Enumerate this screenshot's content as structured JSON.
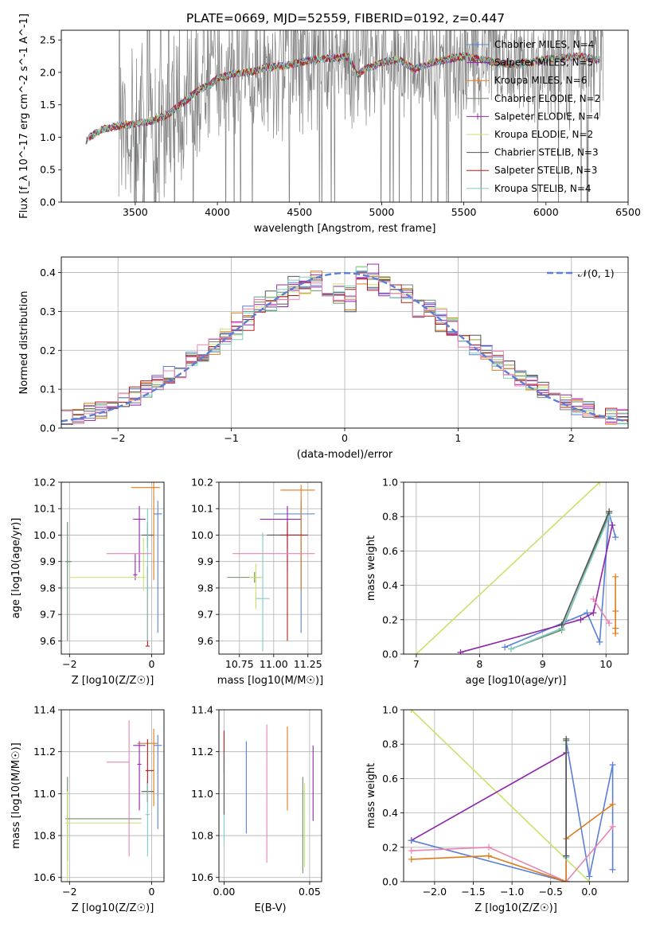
{
  "title": "PLATE=0669, MJD=52559, FIBERID=0192, z=0.447",
  "colors": {
    "chabrier_miles": "#5b7fd6",
    "salpeter_miles": "#8e24aa",
    "kroupa_miles": "#e07b1a",
    "chabrier_elodie": "#6b8e6b",
    "salpeter_elodie": "#9c27b0",
    "kroupa_elodie": "#c6e36b",
    "chabrier_stelib": "#555555",
    "salpeter_stelib": "#b71c1c",
    "kroupa_stelib": "#80cbc4",
    "pink": "#e884b6",
    "data": "#808080"
  },
  "chart_data": [
    {
      "id": "spectrum",
      "type": "line",
      "xlabel": "wavelength [Angstrom, rest frame]",
      "ylabel": "Flux [f_λ 10^-17 erg cm^-2 s^-1 A^-1]",
      "xlim": [
        3050,
        6500
      ],
      "ylim": [
        0,
        2.65
      ],
      "xticks": [
        3500,
        4000,
        4500,
        5000,
        5500,
        6000,
        6500
      ],
      "yticks": [
        0.0,
        0.5,
        1.0,
        1.5,
        2.0,
        2.5
      ],
      "legend_position": "top-right",
      "legend": [
        {
          "label": "Chabrier MILES, N_SSP=4",
          "color": "#5b7fd6",
          "marker": "+"
        },
        {
          "label": "Salpeter MILES, N_SSP=5",
          "color": "#8e24aa",
          "marker": "+"
        },
        {
          "label": "Kroupa MILES, N_SSP=6",
          "color": "#e07b1a",
          "marker": "+"
        },
        {
          "label": "Chabrier ELODIE, N_SSP=2",
          "color": "#6b8e6b",
          "marker": ""
        },
        {
          "label": "Salpeter ELODIE, N_SSP=4",
          "color": "#9c27b0",
          "marker": "+"
        },
        {
          "label": "Kroupa ELODIE, N_SSP=2",
          "color": "#c6e36b",
          "marker": ""
        },
        {
          "label": "Chabrier STELIB, N_SSP=3",
          "color": "#555555",
          "marker": ""
        },
        {
          "label": "Salpeter STELIB, N_SSP=3",
          "color": "#b71c1c",
          "marker": ""
        },
        {
          "label": "Kroupa STELIB, N_SSP=4",
          "color": "#80cbc4",
          "marker": ""
        }
      ],
      "continuum": [
        [
          3200,
          0.95
        ],
        [
          3250,
          1.05
        ],
        [
          3300,
          1.12
        ],
        [
          3400,
          1.18
        ],
        [
          3500,
          1.2
        ],
        [
          3600,
          1.25
        ],
        [
          3700,
          1.35
        ],
        [
          3800,
          1.55
        ],
        [
          3900,
          1.75
        ],
        [
          3950,
          1.8
        ],
        [
          4000,
          1.9
        ],
        [
          4100,
          1.98
        ],
        [
          4200,
          2.0
        ],
        [
          4300,
          2.08
        ],
        [
          4400,
          2.1
        ],
        [
          4500,
          2.15
        ],
        [
          4600,
          2.2
        ],
        [
          4700,
          2.22
        ],
        [
          4800,
          2.25
        ],
        [
          4850,
          1.95
        ],
        [
          4900,
          2.05
        ],
        [
          5000,
          2.15
        ],
        [
          5100,
          2.2
        ],
        [
          5200,
          2.05
        ],
        [
          5300,
          2.15
        ],
        [
          5400,
          2.2
        ],
        [
          5500,
          2.25
        ],
        [
          5600,
          2.2
        ],
        [
          5700,
          2.15
        ],
        [
          5800,
          2.12
        ],
        [
          5900,
          2.15
        ],
        [
          6000,
          2.2
        ],
        [
          6100,
          2.22
        ],
        [
          6200,
          2.25
        ],
        [
          6300,
          2.2
        ]
      ],
      "data_noise": {
        "start": 3400,
        "end": 6350,
        "description_values": "noisy observed spectrum"
      }
    },
    {
      "id": "residuals",
      "type": "step",
      "xlabel": "(data-model)/error",
      "ylabel": "Normed distribution",
      "xlim": [
        -2.5,
        2.5
      ],
      "ylim": [
        0,
        0.44
      ],
      "xticks": [
        -2,
        -1,
        0,
        1,
        2
      ],
      "yticks": [
        0.0,
        0.1,
        0.2,
        0.3,
        0.4
      ],
      "legend_position": "top-right",
      "legend": [
        {
          "label": "𝒩(0, 1)",
          "color": "#5b7fd6",
          "style": "dashed"
        }
      ],
      "bin_width": 0.1
    },
    {
      "id": "age_vs_Z",
      "type": "errorbar",
      "xlabel": "Z [log10(Z/Z☉)]",
      "ylabel": "age  [log10(age/yr)]",
      "xlim": [
        -2.2,
        0.3
      ],
      "ylim": [
        9.55,
        10.2
      ],
      "xticks": [
        -2,
        0
      ],
      "yticks": [
        9.6,
        9.7,
        9.8,
        9.9,
        10.0,
        10.1,
        10.2
      ],
      "points": [
        {
          "color": "#5b7fd6",
          "x": 0.15,
          "xerr": [
            0.1,
            0.1
          ],
          "y": 10.08,
          "yerr": [
            0.45,
            0.05
          ]
        },
        {
          "color": "#8e24aa",
          "x": -0.3,
          "xerr": [
            0.15,
            0.15
          ],
          "y": 10.06,
          "yerr": [
            0.2,
            0.05
          ]
        },
        {
          "color": "#e07b1a",
          "x": 0.05,
          "xerr": [
            0.55,
            0.15
          ],
          "y": 10.18,
          "yerr": [
            0.35,
            0.02
          ]
        },
        {
          "color": "#6b8e6b",
          "x": -2.05,
          "xerr": [
            0.05,
            0.1
          ],
          "y": 9.9,
          "yerr": [
            0.3,
            0.15
          ]
        },
        {
          "color": "#9c27b0",
          "x": -0.4,
          "xerr": [
            0.05,
            0.05
          ],
          "y": 9.85,
          "yerr": [
            0.02,
            0.08
          ]
        },
        {
          "color": "#c6e36b",
          "x": -0.2,
          "xerr": [
            1.8,
            0.05
          ],
          "y": 9.84,
          "yerr": [
            0.05,
            0.15
          ]
        },
        {
          "color": "#555555",
          "x": -0.1,
          "xerr": [
            0.15,
            0.15
          ],
          "y": 10.0,
          "yerr": [
            0.05,
            0.05
          ]
        },
        {
          "color": "#b71c1c",
          "x": -0.1,
          "xerr": [
            0.05,
            0.05
          ],
          "y": 9.58,
          "yerr": [
            0.0,
            0.3
          ]
        },
        {
          "color": "#80cbc4",
          "x": -0.1,
          "xerr": [
            0.05,
            0.05
          ],
          "y": 9.8,
          "yerr": [
            0.2,
            0.3
          ]
        },
        {
          "color": "#e884b6",
          "x": -0.55,
          "xerr": [
            0.55,
            0.55
          ],
          "y": 9.93,
          "yerr": [
            0.0,
            0.0
          ]
        }
      ]
    },
    {
      "id": "age_vs_mass",
      "type": "errorbar",
      "xlabel": "mass [log10(M/M☉)]",
      "ylabel": "",
      "xlim": [
        10.6,
        11.35
      ],
      "ylim": [
        9.55,
        10.2
      ],
      "xticks": [
        10.75,
        11.0,
        11.25
      ],
      "xtick_labels": [
        "10.75",
        "11.00",
        "11.25"
      ],
      "yticks": [
        9.6,
        9.7,
        9.8,
        9.9,
        10.0,
        10.1,
        10.2
      ],
      "points": [
        {
          "color": "#5b7fd6",
          "x": 11.2,
          "xerr": [
            0.2,
            0.1
          ],
          "y": 10.08,
          "yerr": [
            0.45,
            0.05
          ]
        },
        {
          "color": "#8e24aa",
          "x": 11.1,
          "xerr": [
            0.2,
            0.1
          ],
          "y": 10.06,
          "yerr": [
            0.2,
            0.05
          ]
        },
        {
          "color": "#e07b1a",
          "x": 11.2,
          "xerr": [
            0.15,
            0.1
          ],
          "y": 10.17,
          "yerr": [
            0.38,
            0.02
          ]
        },
        {
          "color": "#6b8e6b",
          "x": 10.86,
          "xerr": [
            0.2,
            0.05
          ],
          "y": 9.84,
          "yerr": [
            0.02,
            0.02
          ]
        },
        {
          "color": "#c6e36b",
          "x": 10.87,
          "xerr": [
            0.05,
            0.05
          ],
          "y": 9.84,
          "yerr": [
            0.12,
            0.05
          ]
        },
        {
          "color": "#555555",
          "x": 11.1,
          "xerr": [
            0.15,
            0.1
          ],
          "y": 10.0,
          "yerr": [
            0.05,
            0.05
          ]
        },
        {
          "color": "#b71c1c",
          "x": 11.1,
          "xerr": [
            0.05,
            0.15
          ],
          "y": 10.0,
          "yerr": [
            0.4,
            0.05
          ]
        },
        {
          "color": "#80cbc4",
          "x": 10.92,
          "xerr": [
            0.05,
            0.05
          ],
          "y": 9.76,
          "yerr": [
            0.2,
            0.25
          ]
        },
        {
          "color": "#e884b6",
          "x": 11.0,
          "xerr": [
            0.3,
            0.3
          ],
          "y": 9.93,
          "yerr": [
            0.0,
            0.0
          ]
        }
      ]
    },
    {
      "id": "massweight_vs_age",
      "type": "line",
      "xlabel": "age  [log10(age/yr)]",
      "ylabel": "mass weight",
      "xlim": [
        6.8,
        10.35
      ],
      "ylim": [
        0,
        1.0
      ],
      "xticks": [
        7,
        8,
        9,
        10
      ],
      "yticks": [
        0.0,
        0.2,
        0.4,
        0.6,
        0.8,
        1.0
      ],
      "series": [
        {
          "color": "#c6e36b",
          "x": [
            7.0,
            9.9
          ],
          "y": [
            0.0,
            1.0
          ]
        },
        {
          "color": "#5b7fd6",
          "x": [
            8.4,
            9.7,
            9.9,
            10.05,
            10.15
          ],
          "y": [
            0.04,
            0.24,
            0.07,
            0.82,
            0.68
          ]
        },
        {
          "color": "#8e24aa",
          "x": [
            7.7,
            9.6,
            9.8,
            10.1
          ],
          "y": [
            0.01,
            0.2,
            0.24,
            0.75
          ]
        },
        {
          "color": "#e07b1a",
          "x": [
            10.15,
            10.15,
            10.15,
            10.15
          ],
          "y": [
            0.45,
            0.25,
            0.15,
            0.12
          ]
        },
        {
          "color": "#e884b6",
          "x": [
            9.8,
            10.05
          ],
          "y": [
            0.32,
            0.18
          ]
        },
        {
          "color": "#6b8e6b",
          "x": [
            8.5,
            9.3,
            10.05
          ],
          "y": [
            0.03,
            0.14,
            0.82
          ]
        },
        {
          "color": "#80cbc4",
          "x": [
            8.5,
            9.3,
            10.05
          ],
          "y": [
            0.03,
            0.15,
            0.8
          ]
        },
        {
          "color": "#555555",
          "x": [
            9.3,
            10.05
          ],
          "y": [
            0.17,
            0.83
          ]
        }
      ]
    },
    {
      "id": "mass_vs_Z",
      "type": "errorbar",
      "xlabel": "Z [log10(Z/Z☉)]",
      "ylabel": "mass [log10(M/M☉)]",
      "xlim": [
        -2.2,
        0.3
      ],
      "ylim": [
        10.58,
        11.4
      ],
      "xticks": [
        -2,
        0
      ],
      "yticks": [
        10.6,
        10.8,
        11.0,
        11.2,
        11.4
      ],
      "points": [
        {
          "color": "#5b7fd6",
          "x": 0.15,
          "xerr": [
            0.1,
            0.1
          ],
          "y": 11.23,
          "yerr": [
            0.4,
            0.05
          ]
        },
        {
          "color": "#8e24aa",
          "x": -0.3,
          "xerr": [
            0.15,
            0.15
          ],
          "y": 11.23,
          "yerr": [
            0.3,
            0.02
          ]
        },
        {
          "color": "#e07b1a",
          "x": 0.05,
          "xerr": [
            0.4,
            0.1
          ],
          "y": 11.24,
          "yerr": [
            0.3,
            0.07
          ]
        },
        {
          "color": "#6b8e6b",
          "x": -2.05,
          "xerr": [
            0.05,
            1.8
          ],
          "y": 10.88,
          "yerr": [
            0.2,
            0.2
          ]
        },
        {
          "color": "#9c27b0",
          "x": -0.3,
          "xerr": [
            0.05,
            0.05
          ],
          "y": 11.14,
          "yerr": [
            0.22,
            0.02
          ]
        },
        {
          "color": "#c6e36b",
          "x": -2.05,
          "xerr": [
            0.05,
            1.8
          ],
          "y": 10.86,
          "yerr": [
            0.3,
            0.15
          ]
        },
        {
          "color": "#555555",
          "x": -0.1,
          "xerr": [
            0.15,
            0.15
          ],
          "y": 11.01,
          "yerr": [
            0.05,
            0.05
          ]
        },
        {
          "color": "#b71c1c",
          "x": -0.1,
          "xerr": [
            0.05,
            0.15
          ],
          "y": 11.11,
          "yerr": [
            0.15,
            0.15
          ]
        },
        {
          "color": "#80cbc4",
          "x": -0.1,
          "xerr": [
            0.05,
            0.05
          ],
          "y": 10.9,
          "yerr": [
            0.2,
            0.15
          ]
        },
        {
          "color": "#e884b6",
          "x": -0.55,
          "xerr": [
            0.55,
            0.0
          ],
          "y": 11.15,
          "yerr": [
            0.45,
            0.2
          ]
        }
      ]
    },
    {
      "id": "mass_vs_EBV",
      "type": "errorbar",
      "xlabel": "E(B-V)",
      "ylabel": "",
      "xlim": [
        -0.003,
        0.057
      ],
      "ylim": [
        10.58,
        11.4
      ],
      "xticks": [
        0.0,
        0.05
      ],
      "xtick_labels": [
        "0.00",
        "0.05"
      ],
      "yticks": [
        10.6,
        10.8,
        11.0,
        11.2,
        11.4
      ],
      "points": [
        {
          "color": "#5b7fd6",
          "x": 0.013,
          "y": 11.03,
          "yerr": [
            0.22,
            0.22
          ]
        },
        {
          "color": "#8e24aa",
          "x": 0.052,
          "y": 11.05,
          "yerr": [
            0.18,
            0.18
          ]
        },
        {
          "color": "#e07b1a",
          "x": 0.037,
          "y": 11.12,
          "yerr": [
            0.2,
            0.2
          ]
        },
        {
          "color": "#6b8e6b",
          "x": 0.046,
          "y": 10.85,
          "yerr": [
            0.23,
            0.23
          ]
        },
        {
          "color": "#c6e36b",
          "x": 0.047,
          "y": 10.85,
          "yerr": [
            0.2,
            0.2
          ]
        },
        {
          "color": "#b71c1c",
          "x": 0.0,
          "y": 11.2,
          "yerr": [
            0.1,
            0.1
          ]
        },
        {
          "color": "#80cbc4",
          "x": 0.0,
          "y": 10.95,
          "yerr": [
            0.2,
            0.2
          ]
        },
        {
          "color": "#e884b6",
          "x": 0.025,
          "y": 11.0,
          "yerr": [
            0.33,
            0.33
          ]
        },
        {
          "color": "#555555",
          "x": 0.0,
          "y": 11.05,
          "yerr": [
            0.15,
            0.15
          ]
        }
      ]
    },
    {
      "id": "massweight_vs_Z",
      "type": "line",
      "xlabel": "Z [log10(Z/Z☉)]",
      "ylabel": "mass weight",
      "xlim": [
        -2.4,
        0.5
      ],
      "ylim": [
        0,
        1.0
      ],
      "xticks": [
        -2.0,
        -1.5,
        -1.0,
        -0.5,
        0.0
      ],
      "xtick_labels": [
        "−2.0",
        "−1.5",
        "−1.0",
        "−0.5",
        "0.0"
      ],
      "yticks": [
        0.0,
        0.2,
        0.4,
        0.6,
        0.8,
        1.0
      ],
      "series": [
        {
          "color": "#c6e36b",
          "x": [
            -2.3,
            0.0
          ],
          "y": [
            1.0,
            0.0
          ]
        },
        {
          "color": "#8e24aa",
          "x": [
            -2.3,
            -0.3,
            -0.3
          ],
          "y": [
            0.24,
            0.75,
            0.0
          ]
        },
        {
          "color": "#5b7fd6",
          "x": [
            -2.3,
            -0.3,
            -0.3,
            0.0,
            0.3,
            0.3
          ],
          "y": [
            0.24,
            0.0,
            0.82,
            0.03,
            0.68,
            0.07
          ]
        },
        {
          "color": "#e884b6",
          "x": [
            -2.3,
            -1.3,
            -0.3,
            0.3
          ],
          "y": [
            0.18,
            0.2,
            0.0,
            0.32
          ]
        },
        {
          "color": "#e07b1a",
          "x": [
            -2.3,
            -1.3,
            -0.3,
            -0.3,
            0.3
          ],
          "y": [
            0.13,
            0.15,
            0.0,
            0.25,
            0.45
          ]
        },
        {
          "color": "#6b8e6b",
          "x": [
            -0.3,
            -0.3
          ],
          "y": [
            0.15,
            0.82
          ]
        },
        {
          "color": "#80cbc4",
          "x": [
            -0.3,
            -0.3
          ],
          "y": [
            0.14,
            0.8
          ]
        },
        {
          "color": "#555555",
          "x": [
            -0.3,
            -0.3
          ],
          "y": [
            0.15,
            0.83
          ]
        }
      ]
    }
  ]
}
